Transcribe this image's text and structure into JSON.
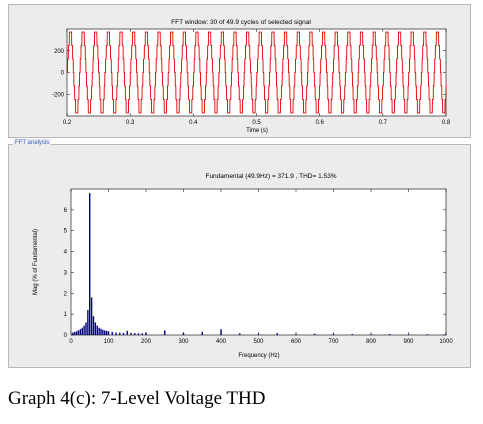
{
  "chart_data": [
    {
      "type": "line",
      "title": "FFT window: 30 of 49.9 cycles of selected signal",
      "xlabel": "Time (s)",
      "ylabel": "",
      "xlim": [
        0.2,
        0.8
      ],
      "ylim": [
        -400,
        400
      ],
      "x_ticks": [
        "0.2",
        "0.3",
        "0.4",
        "0.5",
        "0.6",
        "0.7",
        "0.8"
      ],
      "y_ticks": [
        "200",
        "0",
        "-200"
      ],
      "series": [
        {
          "frequency_hz": 49.9,
          "amplitude": 371.9,
          "waveform": "7-level stepped sine",
          "color": "#dd0000"
        }
      ],
      "grid": false
    },
    {
      "type": "bar",
      "title": "Fundamental (49.9Hz) = 371.9 , THD= 1.53%",
      "xlabel": "Frequency (Hz)",
      "ylabel": "Mag (% of Fundamental)",
      "xlim": [
        0,
        1000
      ],
      "ylim": [
        0,
        7
      ],
      "x_ticks": [
        "0",
        "100",
        "200",
        "300",
        "400",
        "500",
        "600",
        "700",
        "800",
        "900",
        "1000"
      ],
      "y_ticks": [
        "0",
        "1",
        "2",
        "3",
        "4",
        "5",
        "6"
      ],
      "x": [
        5,
        10,
        15,
        20,
        25,
        30,
        35,
        40,
        45,
        49.9,
        55,
        60,
        65,
        70,
        75,
        80,
        85,
        90,
        95,
        100,
        110,
        120,
        130,
        140,
        150,
        160,
        170,
        180,
        190,
        200,
        250,
        300,
        350,
        400,
        450,
        500,
        550,
        600,
        650,
        700,
        750,
        800,
        850,
        900,
        950,
        1000
      ],
      "values": [
        0.12,
        0.15,
        0.18,
        0.22,
        0.28,
        0.35,
        0.45,
        0.6,
        1.2,
        6.8,
        1.8,
        0.9,
        0.6,
        0.45,
        0.35,
        0.3,
        0.25,
        0.22,
        0.2,
        0.18,
        0.15,
        0.12,
        0.11,
        0.1,
        0.2,
        0.1,
        0.09,
        0.08,
        0.08,
        0.12,
        0.22,
        0.1,
        0.15,
        0.28,
        0.08,
        0.06,
        0.09,
        0.05,
        0.06,
        0.05,
        0.05,
        0.04,
        0.05,
        0.04,
        0.04,
        0.04
      ],
      "fundamental_hz": 49.9,
      "fundamental_magnitude": 371.9,
      "thd_percent": 1.53,
      "bar_color": "#000080",
      "grid": false
    }
  ],
  "fft_panel_label": "FFT analysis",
  "caption": "Graph 4(c): 7-Level Voltage THD"
}
